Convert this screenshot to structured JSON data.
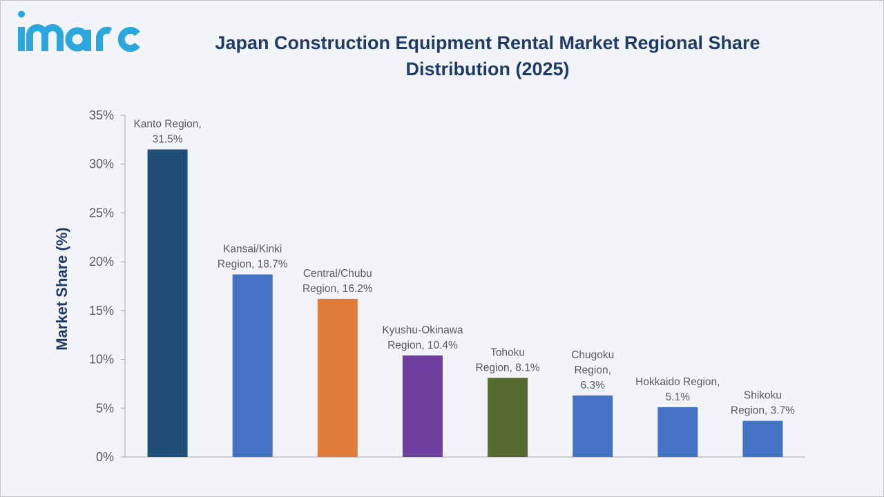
{
  "brand": {
    "name": "imarc",
    "color": "#2aa7df"
  },
  "chart_data": {
    "type": "bar",
    "title": "Japan Construction Equipment Rental Market Regional Share Distribution (2025)",
    "title_lines": [
      "Japan Construction Equipment Rental Market Regional Share",
      "Distribution (2025)"
    ],
    "xlabel": "",
    "ylabel": "Market Share (%)",
    "ylim": [
      0,
      35
    ],
    "yticks": [
      0,
      5,
      10,
      15,
      20,
      25,
      30,
      35
    ],
    "ytick_labels": [
      "0%",
      "5%",
      "10%",
      "15%",
      "20%",
      "25%",
      "30%",
      "35%"
    ],
    "categories": [
      "Kanto Region",
      "Kansai/Kinki Region",
      "Central/Chubu Region",
      "Kyushu-Okinawa Region",
      "Tohoku Region",
      "Chugoku Region",
      "Hokkaido Region",
      "Shikoku Region"
    ],
    "values": [
      31.5,
      18.7,
      16.2,
      10.4,
      8.1,
      6.3,
      5.1,
      3.7
    ],
    "data_labels": [
      [
        "Kanto Region,",
        "31.5%"
      ],
      [
        "Kansai/Kinki",
        "Region, 18.7%"
      ],
      [
        "Central/Chubu",
        "Region, 16.2%"
      ],
      [
        "Kyushu-Okinawa",
        "Region, 10.4%"
      ],
      [
        "Tohoku",
        "Region, 8.1%"
      ],
      [
        "Chugoku",
        "Region,",
        "6.3%"
      ],
      [
        "Hokkaido Region,",
        "5.1%"
      ],
      [
        "Shikoku",
        "Region, 3.7%"
      ]
    ],
    "colors": [
      "#1f4e79",
      "#4472c4",
      "#e07b39",
      "#7040a0",
      "#556b2f",
      "#4472c4",
      "#4472c4",
      "#4472c4"
    ],
    "grid": false,
    "legend": "none"
  }
}
